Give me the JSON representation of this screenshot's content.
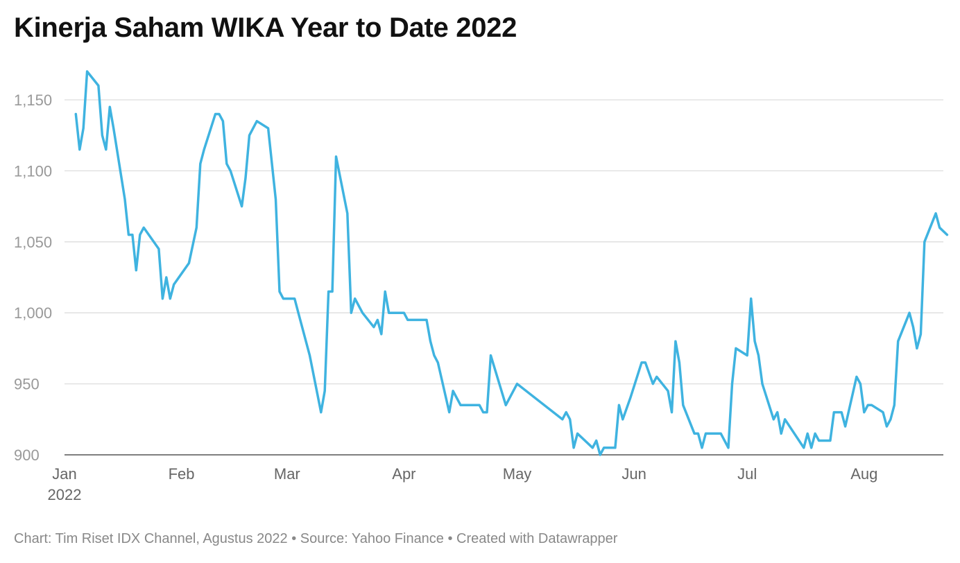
{
  "chart_data": {
    "type": "line",
    "title": "Kinerja Saham WIKA Year to Date 2022",
    "source": "Chart: Tim Riset IDX Channel, Agustus 2022 • Source: Yahoo Finance • Created with Datawrapper",
    "ylim": [
      900,
      1170
    ],
    "y_ticks": [
      900,
      950,
      1000,
      1050,
      1100,
      1150
    ],
    "y_tick_labels": [
      "900",
      "950",
      "1,000",
      "1,050",
      "1,100",
      "1,150"
    ],
    "xlim": [
      "2022-01-01",
      "2022-08-22"
    ],
    "x_ticks": [
      {
        "date": "2022-01-01",
        "label": "Jan",
        "sublabel": "2022"
      },
      {
        "date": "2022-02-01",
        "label": "Feb",
        "sublabel": ""
      },
      {
        "date": "2022-03-01",
        "label": "Mar",
        "sublabel": ""
      },
      {
        "date": "2022-04-01",
        "label": "Apr",
        "sublabel": ""
      },
      {
        "date": "2022-05-01",
        "label": "May",
        "sublabel": ""
      },
      {
        "date": "2022-06-01",
        "label": "Jun",
        "sublabel": ""
      },
      {
        "date": "2022-07-01",
        "label": "Jul",
        "sublabel": ""
      },
      {
        "date": "2022-08-01",
        "label": "Aug",
        "sublabel": ""
      }
    ],
    "grid": true,
    "color": "#3fb3e0",
    "series": [
      {
        "points": [
          [
            "2022-01-04",
            1140
          ],
          [
            "2022-01-05",
            1115
          ],
          [
            "2022-01-06",
            1130
          ],
          [
            "2022-01-07",
            1170
          ],
          [
            "2022-01-10",
            1160
          ],
          [
            "2022-01-11",
            1125
          ],
          [
            "2022-01-12",
            1115
          ],
          [
            "2022-01-13",
            1145
          ],
          [
            "2022-01-14",
            1130
          ],
          [
            "2022-01-17",
            1080
          ],
          [
            "2022-01-18",
            1055
          ],
          [
            "2022-01-19",
            1055
          ],
          [
            "2022-01-20",
            1030
          ],
          [
            "2022-01-21",
            1055
          ],
          [
            "2022-01-22",
            1060
          ],
          [
            "2022-01-26",
            1045
          ],
          [
            "2022-01-27",
            1010
          ],
          [
            "2022-01-28",
            1025
          ],
          [
            "2022-01-29",
            1010
          ],
          [
            "2022-01-30",
            1020
          ],
          [
            "2022-02-03",
            1035
          ],
          [
            "2022-02-05",
            1060
          ],
          [
            "2022-02-06",
            1105
          ],
          [
            "2022-02-07",
            1115
          ],
          [
            "2022-02-10",
            1140
          ],
          [
            "2022-02-11",
            1140
          ],
          [
            "2022-02-12",
            1135
          ],
          [
            "2022-02-13",
            1105
          ],
          [
            "2022-02-14",
            1100
          ],
          [
            "2022-02-17",
            1075
          ],
          [
            "2022-02-18",
            1095
          ],
          [
            "2022-02-19",
            1125
          ],
          [
            "2022-02-21",
            1135
          ],
          [
            "2022-02-24",
            1130
          ],
          [
            "2022-02-26",
            1080
          ],
          [
            "2022-02-27",
            1015
          ],
          [
            "2022-02-28",
            1010
          ],
          [
            "2022-03-03",
            1010
          ],
          [
            "2022-03-04",
            1000
          ],
          [
            "2022-03-07",
            970
          ],
          [
            "2022-03-10",
            930
          ],
          [
            "2022-03-11",
            945
          ],
          [
            "2022-03-12",
            1015
          ],
          [
            "2022-03-13",
            1015
          ],
          [
            "2022-03-14",
            1110
          ],
          [
            "2022-03-17",
            1070
          ],
          [
            "2022-03-18",
            1000
          ],
          [
            "2022-03-19",
            1010
          ],
          [
            "2022-03-21",
            1000
          ],
          [
            "2022-03-24",
            990
          ],
          [
            "2022-03-25",
            995
          ],
          [
            "2022-03-26",
            985
          ],
          [
            "2022-03-27",
            1015
          ],
          [
            "2022-03-28",
            1000
          ],
          [
            "2022-04-01",
            1000
          ],
          [
            "2022-04-02",
            995
          ],
          [
            "2022-04-07",
            995
          ],
          [
            "2022-04-08",
            980
          ],
          [
            "2022-04-09",
            970
          ],
          [
            "2022-04-10",
            965
          ],
          [
            "2022-04-13",
            930
          ],
          [
            "2022-04-14",
            945
          ],
          [
            "2022-04-16",
            935
          ],
          [
            "2022-04-21",
            935
          ],
          [
            "2022-04-22",
            930
          ],
          [
            "2022-04-23",
            930
          ],
          [
            "2022-04-24",
            970
          ],
          [
            "2022-04-28",
            935
          ],
          [
            "2022-05-01",
            950
          ],
          [
            "2022-05-13",
            925
          ],
          [
            "2022-05-14",
            930
          ],
          [
            "2022-05-15",
            925
          ],
          [
            "2022-05-16",
            905
          ],
          [
            "2022-05-17",
            915
          ],
          [
            "2022-05-21",
            905
          ],
          [
            "2022-05-22",
            910
          ],
          [
            "2022-05-23",
            900
          ],
          [
            "2022-05-24",
            905
          ],
          [
            "2022-05-27",
            905
          ],
          [
            "2022-05-28",
            935
          ],
          [
            "2022-05-29",
            925
          ],
          [
            "2022-05-31",
            940
          ],
          [
            "2022-06-03",
            965
          ],
          [
            "2022-06-04",
            965
          ],
          [
            "2022-06-06",
            950
          ],
          [
            "2022-06-07",
            955
          ],
          [
            "2022-06-10",
            945
          ],
          [
            "2022-06-11",
            930
          ],
          [
            "2022-06-12",
            980
          ],
          [
            "2022-06-13",
            965
          ],
          [
            "2022-06-14",
            935
          ],
          [
            "2022-06-17",
            915
          ],
          [
            "2022-06-18",
            915
          ],
          [
            "2022-06-19",
            905
          ],
          [
            "2022-06-20",
            915
          ],
          [
            "2022-06-24",
            915
          ],
          [
            "2022-06-26",
            905
          ],
          [
            "2022-06-27",
            950
          ],
          [
            "2022-06-28",
            975
          ],
          [
            "2022-07-01",
            970
          ],
          [
            "2022-07-02",
            1010
          ],
          [
            "2022-07-03",
            980
          ],
          [
            "2022-07-04",
            970
          ],
          [
            "2022-07-05",
            950
          ],
          [
            "2022-07-08",
            925
          ],
          [
            "2022-07-09",
            930
          ],
          [
            "2022-07-10",
            915
          ],
          [
            "2022-07-11",
            925
          ],
          [
            "2022-07-16",
            905
          ],
          [
            "2022-07-17",
            915
          ],
          [
            "2022-07-18",
            905
          ],
          [
            "2022-07-19",
            915
          ],
          [
            "2022-07-20",
            910
          ],
          [
            "2022-07-23",
            910
          ],
          [
            "2022-07-24",
            930
          ],
          [
            "2022-07-26",
            930
          ],
          [
            "2022-07-27",
            920
          ],
          [
            "2022-07-30",
            955
          ],
          [
            "2022-07-31",
            950
          ],
          [
            "2022-08-01",
            930
          ],
          [
            "2022-08-02",
            935
          ],
          [
            "2022-08-03",
            935
          ],
          [
            "2022-08-06",
            930
          ],
          [
            "2022-08-07",
            920
          ],
          [
            "2022-08-08",
            925
          ],
          [
            "2022-08-09",
            935
          ],
          [
            "2022-08-10",
            980
          ],
          [
            "2022-08-13",
            1000
          ],
          [
            "2022-08-14",
            990
          ],
          [
            "2022-08-15",
            975
          ],
          [
            "2022-08-16",
            985
          ],
          [
            "2022-08-17",
            1050
          ],
          [
            "2022-08-20",
            1070
          ],
          [
            "2022-08-21",
            1060
          ],
          [
            "2022-08-23",
            1055
          ]
        ]
      }
    ]
  }
}
